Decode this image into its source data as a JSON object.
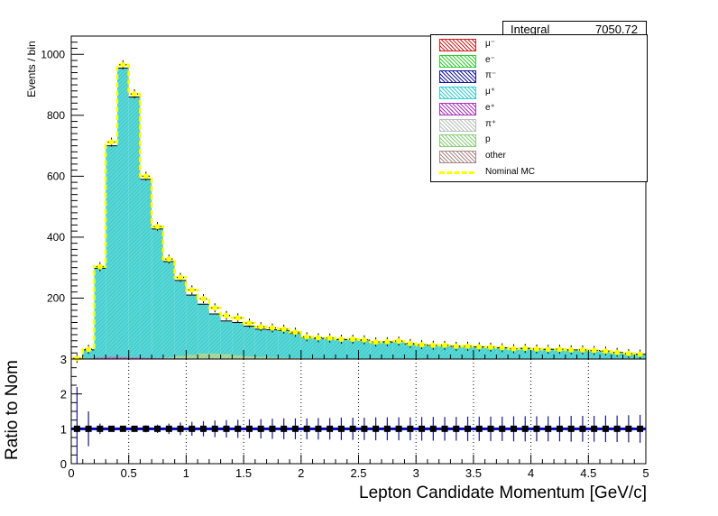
{
  "stats": {
    "label": "Integral",
    "value": "7050.72"
  },
  "colors": {
    "mu_plus": "#5ad8d8",
    "mu_plus_fill": "#33cccc",
    "p": "#a8d48c",
    "e_plus": "#b03ab8",
    "nominal": "#ffff00",
    "ratio_marker": "#000000",
    "ratio_line": "#0000cc"
  },
  "legend": [
    {
      "label": "μ⁻",
      "color": "#cc2222",
      "icon": "hatched-box"
    },
    {
      "label": "e⁻",
      "color": "#33cc33",
      "icon": "hatched-box"
    },
    {
      "label": "π⁻",
      "color": "#1a1a99",
      "icon": "hatched-box"
    },
    {
      "label": "μ⁺",
      "color": "#33cccc",
      "icon": "hatched-box"
    },
    {
      "label": "e⁺",
      "color": "#aa33bb",
      "icon": "hatched-box"
    },
    {
      "label": "π⁺",
      "color": "#b8c0bc",
      "icon": "hatched-box"
    },
    {
      "label": "p",
      "color": "#88cc77",
      "icon": "hatched-box"
    },
    {
      "label": "other",
      "color": "#aa8888",
      "icon": "hatched-box"
    },
    {
      "label": "Nominal MC",
      "color": "#ffff00",
      "icon": "dashed-line"
    }
  ],
  "chart_data": [
    {
      "type": "bar",
      "title": "",
      "xlabel": "",
      "ylabel": "Events / bin",
      "xlim": [
        0,
        5
      ],
      "ylim": [
        0,
        1060
      ],
      "yticks": [
        200,
        400,
        600,
        800,
        1000
      ],
      "bin_width": 0.1,
      "x": [
        0.05,
        0.15,
        0.25,
        0.35,
        0.45,
        0.55,
        0.65,
        0.75,
        0.85,
        0.95,
        1.05,
        1.15,
        1.25,
        1.35,
        1.45,
        1.55,
        1.65,
        1.75,
        1.85,
        1.95,
        2.05,
        2.15,
        2.25,
        2.35,
        2.45,
        2.55,
        2.65,
        2.75,
        2.85,
        2.95,
        3.05,
        3.15,
        3.25,
        3.35,
        3.45,
        3.55,
        3.65,
        3.75,
        3.85,
        3.95,
        4.05,
        4.15,
        4.25,
        4.35,
        4.45,
        4.55,
        4.65,
        4.75,
        4.85,
        4.95
      ],
      "series": [
        {
          "name": "μ⁺",
          "values": [
            2,
            30,
            298,
            700,
            955,
            860,
            590,
            427,
            320,
            258,
            210,
            180,
            148,
            125,
            120,
            108,
            98,
            96,
            94,
            84,
            70,
            68,
            68,
            64,
            64,
            62,
            55,
            56,
            58,
            50,
            47,
            45,
            45,
            42,
            42,
            40,
            39,
            37,
            34,
            35,
            33,
            32,
            32,
            30,
            30,
            28,
            26,
            22,
            18,
            16
          ]
        },
        {
          "name": "p",
          "values": [
            0,
            0,
            0,
            0,
            0,
            0,
            1,
            2,
            5,
            10,
            14,
            18,
            18,
            16,
            12,
            9,
            7,
            5,
            4,
            3,
            2,
            2,
            1,
            1,
            1,
            1,
            1,
            1,
            1,
            1,
            0,
            0,
            0,
            0,
            0,
            0,
            0,
            0,
            0,
            0,
            0,
            0,
            0,
            0,
            0,
            0,
            0,
            0,
            0,
            0
          ]
        },
        {
          "name": "e⁺",
          "values": [
            0,
            2,
            5,
            7,
            6,
            5,
            4,
            3,
            2,
            2,
            1,
            1,
            1,
            1,
            1,
            1,
            1,
            1,
            1,
            1,
            0,
            0,
            0,
            0,
            0,
            0,
            0,
            0,
            0,
            0,
            0,
            0,
            0,
            0,
            0,
            0,
            0,
            0,
            0,
            0,
            0,
            0,
            0,
            0,
            0,
            0,
            0,
            0,
            0,
            0
          ]
        },
        {
          "name": "Nominal MC",
          "values": [
            2,
            32,
            303,
            712,
            966,
            870,
            600,
            435,
            328,
            268,
            227,
            198,
            168,
            143,
            135,
            118,
            106,
            102,
            98,
            88,
            73,
            70,
            69,
            65,
            65,
            63,
            56,
            57,
            59,
            51,
            47,
            45,
            45,
            42,
            42,
            40,
            39,
            37,
            34,
            35,
            33,
            32,
            32,
            30,
            30,
            28,
            26,
            22,
            18,
            16
          ]
        }
      ]
    },
    {
      "type": "scatter",
      "title": "",
      "xlabel": "Lepton Candidate Momentum [GeV/c]",
      "ylabel": "Ratio to Nom",
      "xlim": [
        0,
        5
      ],
      "ylim": [
        0,
        3
      ],
      "xticks": [
        0,
        0.5,
        1,
        1.5,
        2,
        2.5,
        3,
        3.5,
        4,
        4.5,
        5
      ],
      "yticks": [
        0,
        1,
        2,
        3
      ],
      "x": [
        0.05,
        0.15,
        0.25,
        0.35,
        0.45,
        0.55,
        0.65,
        0.75,
        0.85,
        0.95,
        1.05,
        1.15,
        1.25,
        1.35,
        1.45,
        1.55,
        1.65,
        1.75,
        1.85,
        1.95,
        2.05,
        2.15,
        2.25,
        2.35,
        2.45,
        2.55,
        2.65,
        2.75,
        2.85,
        2.95,
        3.05,
        3.15,
        3.25,
        3.35,
        3.45,
        3.55,
        3.65,
        3.75,
        3.85,
        3.95,
        4.05,
        4.15,
        4.25,
        4.35,
        4.45,
        4.55,
        4.65,
        4.75,
        4.85,
        4.95
      ],
      "series": [
        {
          "name": "",
          "values": [
            1,
            1,
            1,
            1,
            1,
            1,
            1,
            1,
            1,
            1,
            1,
            1,
            1,
            1,
            1,
            1,
            1,
            1,
            1,
            1,
            1,
            1,
            1,
            1,
            1,
            1,
            1,
            1,
            1,
            1,
            1,
            1,
            1,
            1,
            1,
            1,
            1,
            1,
            1,
            1,
            1,
            1,
            1,
            1,
            1,
            1,
            1,
            1,
            1,
            1
          ],
          "errors": [
            1.2,
            0.5,
            0.15,
            0.08,
            0.08,
            0.08,
            0.1,
            0.12,
            0.15,
            0.18,
            0.2,
            0.22,
            0.24,
            0.25,
            0.26,
            0.27,
            0.28,
            0.29,
            0.3,
            0.3,
            0.3,
            0.31,
            0.31,
            0.32,
            0.32,
            0.32,
            0.33,
            0.33,
            0.33,
            0.33,
            0.34,
            0.34,
            0.34,
            0.34,
            0.35,
            0.35,
            0.35,
            0.35,
            0.36,
            0.36,
            0.36,
            0.36,
            0.36,
            0.37,
            0.37,
            0.37,
            0.38,
            0.38,
            0.39,
            0.4
          ]
        }
      ]
    }
  ]
}
